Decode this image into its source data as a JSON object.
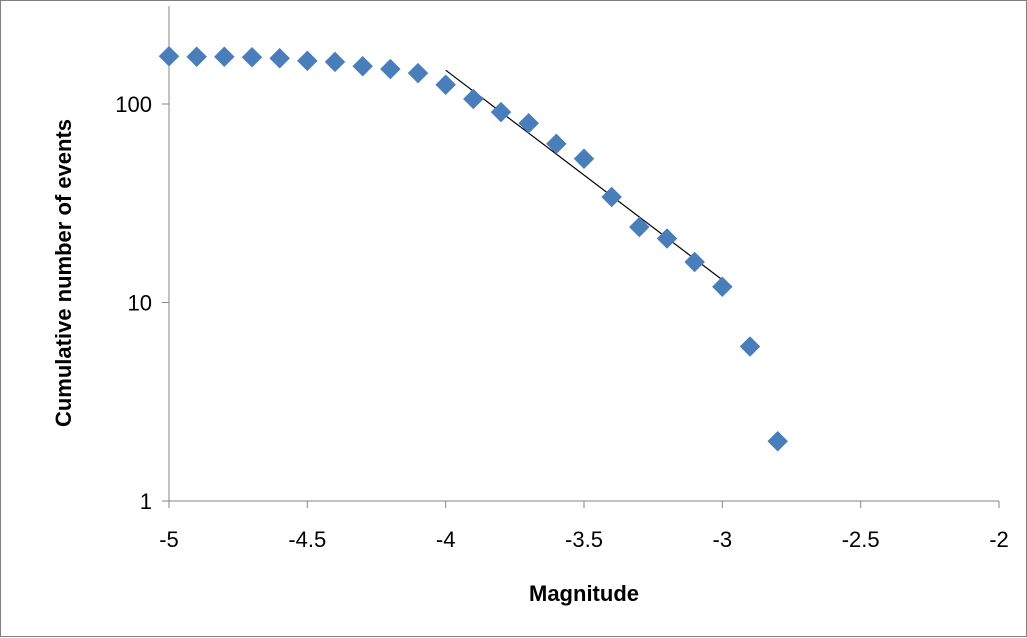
{
  "chart_data": {
    "type": "scatter",
    "title": "",
    "xlabel": "Magnitude",
    "ylabel": "Cumulative number of events",
    "xlim": [
      -5,
      -2
    ],
    "ylim": [
      1,
      200
    ],
    "y_scale": "log",
    "grid": false,
    "legend": "none",
    "x_ticks": [
      -5,
      -4.5,
      -4,
      -3.5,
      -3,
      -2.5,
      -2
    ],
    "x_tick_labels": [
      "-5",
      "-4.5",
      "-4",
      "-3.5",
      "-3",
      "-2.5",
      "-2"
    ],
    "y_ticks": [
      1,
      10,
      100
    ],
    "y_tick_labels": [
      "1",
      "10",
      "100"
    ],
    "series": [
      {
        "marker": "diamond",
        "color": "#4a7ebb",
        "points": [
          {
            "x": -5.0,
            "y": 174
          },
          {
            "x": -4.9,
            "y": 173
          },
          {
            "x": -4.8,
            "y": 173
          },
          {
            "x": -4.7,
            "y": 172
          },
          {
            "x": -4.6,
            "y": 170
          },
          {
            "x": -4.5,
            "y": 165
          },
          {
            "x": -4.4,
            "y": 163
          },
          {
            "x": -4.3,
            "y": 155
          },
          {
            "x": -4.2,
            "y": 150
          },
          {
            "x": -4.1,
            "y": 143
          },
          {
            "x": -4.0,
            "y": 125
          },
          {
            "x": -3.9,
            "y": 106
          },
          {
            "x": -3.8,
            "y": 91
          },
          {
            "x": -3.7,
            "y": 80
          },
          {
            "x": -3.6,
            "y": 63
          },
          {
            "x": -3.5,
            "y": 53
          },
          {
            "x": -3.4,
            "y": 34
          },
          {
            "x": -3.3,
            "y": 24
          },
          {
            "x": -3.2,
            "y": 21
          },
          {
            "x": -3.1,
            "y": 16
          },
          {
            "x": -3.0,
            "y": 12
          },
          {
            "x": -2.9,
            "y": 6
          },
          {
            "x": -2.8,
            "y": 2
          }
        ]
      }
    ],
    "fit_line": {
      "color": "#000000",
      "points": [
        {
          "x": -4.0,
          "y": 148
        },
        {
          "x": -3.0,
          "y": 13
        }
      ]
    }
  }
}
